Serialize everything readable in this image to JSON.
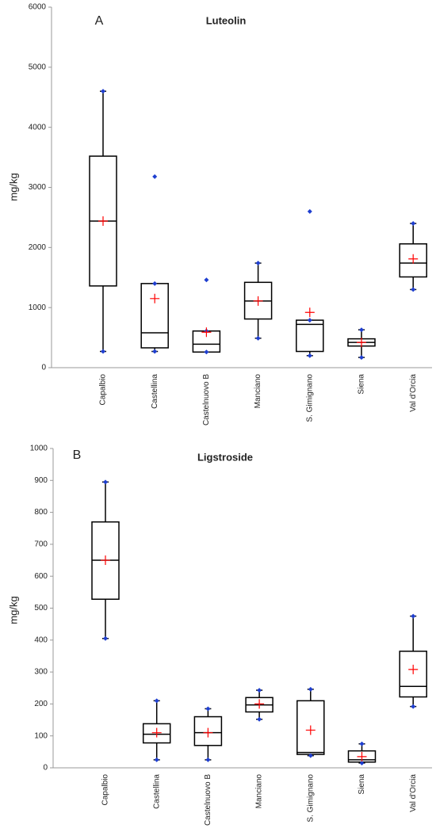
{
  "chart_data": [
    {
      "type": "box",
      "label": "A",
      "title": "Luteolin",
      "ylabel": "mg/kg",
      "categories": [
        "Capalbio",
        "Castellina",
        "Castelnuovo B",
        "Manciano",
        "S. Gimignano",
        "Siena",
        "Val d'Orcia"
      ],
      "min": [
        270,
        270,
        260,
        490,
        200,
        170,
        1300
      ],
      "q1": [
        1360,
        330,
        260,
        810,
        270,
        360,
        1510
      ],
      "median": [
        2440,
        580,
        390,
        1110,
        720,
        420,
        1740
      ],
      "q3": [
        3520,
        1400,
        610,
        1420,
        790,
        480,
        2060
      ],
      "max": [
        4600,
        1400,
        610,
        1740,
        790,
        630,
        2400
      ],
      "mean": [
        2440,
        1150,
        590,
        1110,
        920,
        420,
        1810
      ],
      "outliers": [
        [],
        [
          3180
        ],
        [
          1460
        ],
        [],
        [
          2600
        ],
        [],
        []
      ],
      "box_color": "#000000",
      "point_color": "#1f3fd0",
      "mean_color": "#ff0000",
      "ylim": [
        0,
        6000
      ],
      "yticks": [
        0,
        1000,
        2000,
        3000,
        4000,
        5000,
        6000
      ]
    },
    {
      "type": "box",
      "label": "B",
      "title": "Ligstroside",
      "ylabel": "mg/kg",
      "categories": [
        "Capalbio",
        "Castellina",
        "Castelnuovo B",
        "Manciano",
        "S. Gimignano",
        "Siena",
        "Val d'Orcia"
      ],
      "min": [
        405,
        25,
        25,
        152,
        38,
        15,
        192
      ],
      "q1": [
        528,
        78,
        70,
        175,
        42,
        18,
        222
      ],
      "median": [
        650,
        105,
        110,
        197,
        48,
        25,
        255
      ],
      "q3": [
        770,
        138,
        160,
        220,
        210,
        53,
        365
      ],
      "max": [
        895,
        210,
        185,
        243,
        246,
        75,
        475
      ],
      "mean": [
        650,
        110,
        110,
        200,
        118,
        35,
        308
      ],
      "box_color": "#000000",
      "point_color": "#1f3fd0",
      "mean_color": "#ff0000",
      "ylim": [
        0,
        1000
      ],
      "yticks": [
        0,
        100,
        200,
        300,
        400,
        500,
        600,
        700,
        800,
        900,
        1000
      ]
    }
  ]
}
